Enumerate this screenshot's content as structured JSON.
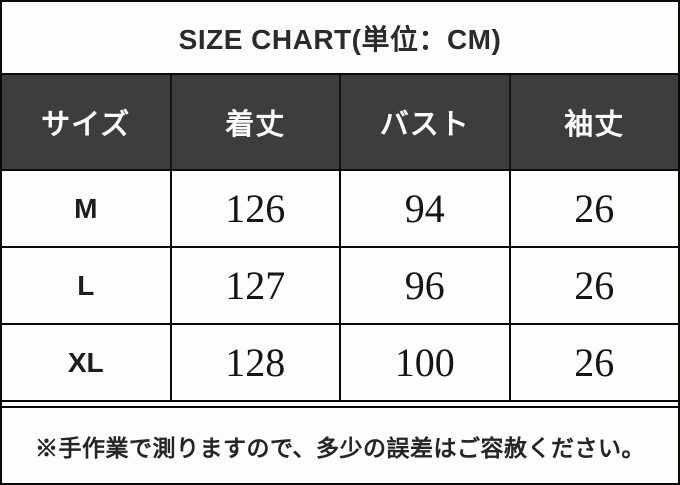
{
  "title": "SIZE CHART(単位：CM)",
  "footer_note": "※手作業で測りますので、多少の誤差はご容赦ください。",
  "colors": {
    "header_background": "#3d3d3d",
    "header_text": "#fcfcfc",
    "border": "#0a0a0a",
    "background": "#fdfdfb",
    "body_text": "#1d1d1d"
  },
  "chart_data": {
    "type": "table",
    "title": "SIZE CHART(単位：CM)",
    "unit": "CM",
    "columns": [
      "サイズ",
      "着丈",
      "バスト",
      "袖丈"
    ],
    "rows": [
      [
        "M",
        126,
        94,
        26
      ],
      [
        "L",
        127,
        96,
        26
      ],
      [
        "XL",
        128,
        100,
        26
      ]
    ],
    "note": "※手作業で測りますので、多少の誤差はご容赦ください。"
  }
}
